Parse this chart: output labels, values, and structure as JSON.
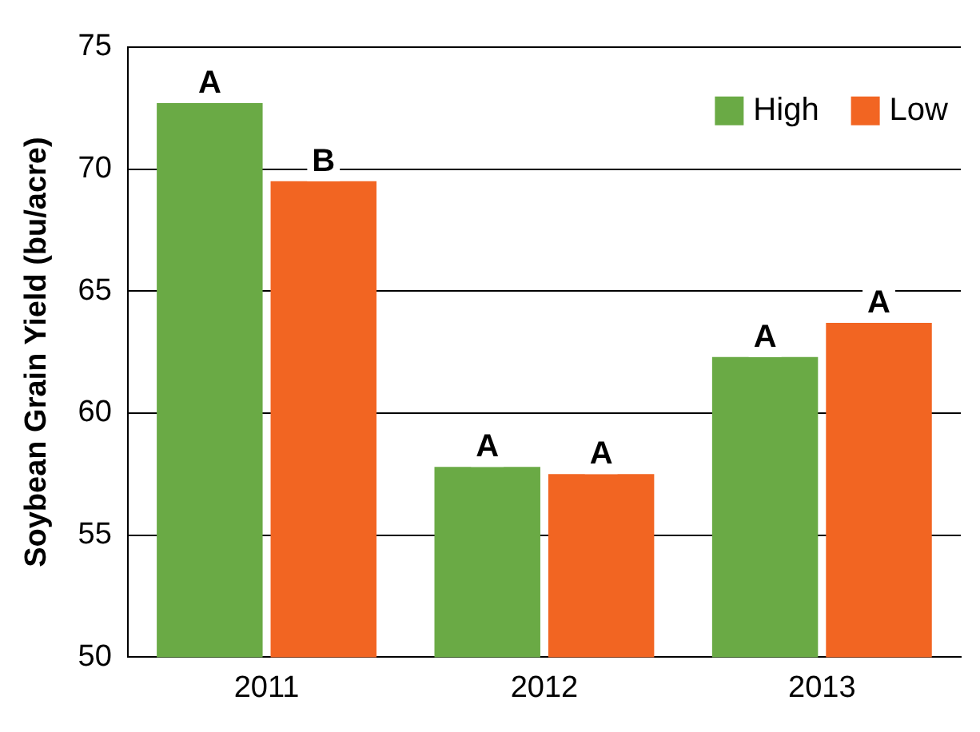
{
  "chart_data": {
    "type": "bar",
    "ylabel": "Soybean Grain Yield (bu/acre)",
    "categories": [
      "2011",
      "2012",
      "2013"
    ],
    "series": [
      {
        "name": "High",
        "color": "#6aaa45",
        "values": [
          72.7,
          57.8,
          62.3
        ],
        "value_labels": [
          "A",
          "A",
          "A"
        ]
      },
      {
        "name": "Low",
        "color": "#f26522",
        "values": [
          69.5,
          57.5,
          63.7
        ],
        "value_labels": [
          "B",
          "A",
          "A"
        ]
      }
    ],
    "ylim": [
      50,
      75
    ],
    "yticks": [
      50,
      55,
      60,
      65,
      70,
      75
    ],
    "grid": "y",
    "legend": "top right"
  }
}
